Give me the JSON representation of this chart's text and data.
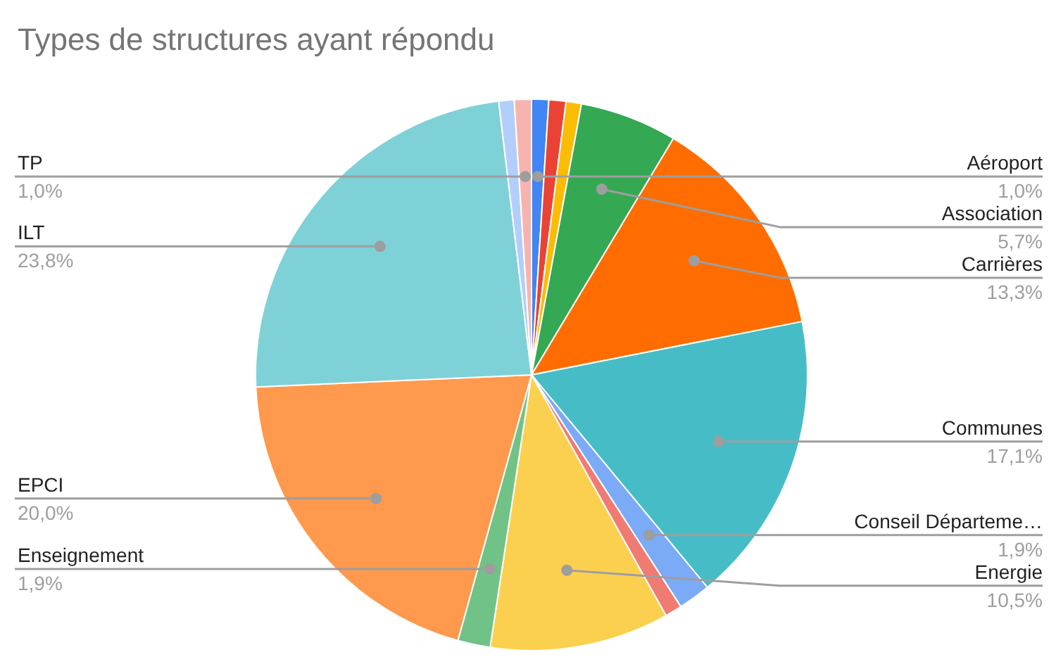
{
  "chart_data": {
    "type": "pie",
    "title": "Types de structures ayant répondu",
    "categories": [
      "Aéroport",
      null,
      null,
      "Association",
      "Carrières",
      "Communes",
      "Conseil Départeme…",
      null,
      "Energie",
      "Enseignement",
      "EPCI",
      "ILT",
      null,
      "TP"
    ],
    "values": [
      1.0,
      1.0,
      0.9,
      5.7,
      13.3,
      17.1,
      1.9,
      1.0,
      10.5,
      1.9,
      20.0,
      23.8,
      0.9,
      1.0
    ],
    "colors": [
      "#4285f4",
      "#ea4335",
      "#fbbc04",
      "#34a853",
      "#ff6d01",
      "#46bdc6",
      "#7baaf7",
      "#f07b72",
      "#fcd04f",
      "#71c287",
      "#ff994d",
      "#7ed1d7",
      "#b3cefb",
      "#f7b4ae"
    ],
    "value_labels": [
      "1,0%",
      null,
      null,
      "5,7%",
      "13,3%",
      "17,1%",
      "1,9%",
      null,
      "10,5%",
      "1,9%",
      "20,0%",
      "23,8%",
      null,
      "1,0%"
    ]
  }
}
